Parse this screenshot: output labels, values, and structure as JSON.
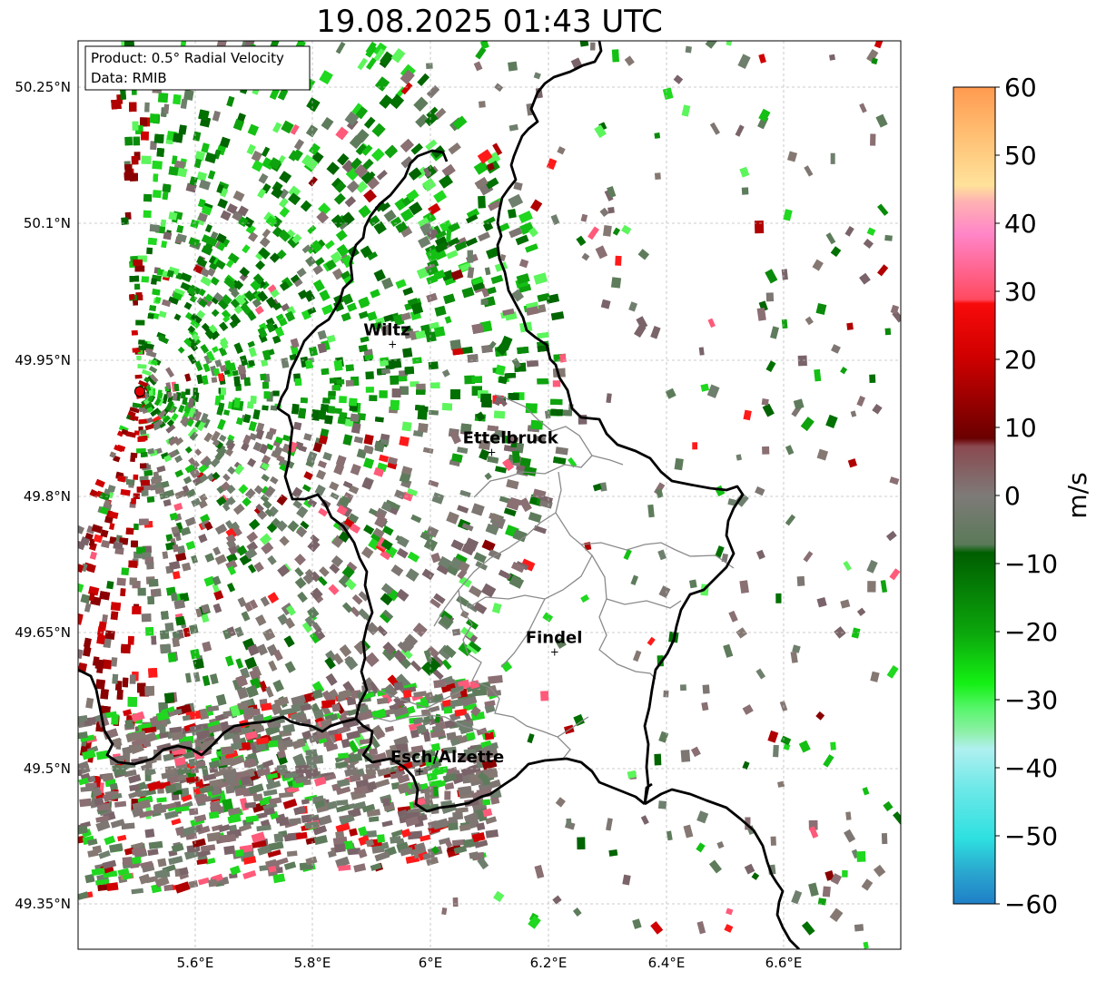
{
  "title": "19.08.2025 01:43 UTC",
  "info_box": {
    "line1": "Product: 0.5° Radial Velocity",
    "line2": "Data: RMIB"
  },
  "map": {
    "lon_range": [
      5.4,
      6.8
    ],
    "lat_range": [
      49.3,
      50.3
    ],
    "x_ticks": [
      "5.6°E",
      "5.8°E",
      "6°E",
      "6.2°E",
      "6.4°E",
      "6.6°E"
    ],
    "y_ticks": [
      "50.25°N",
      "50.1°N",
      "49.95°N",
      "49.8°N",
      "49.65°N",
      "49.5°N",
      "49.35°N"
    ],
    "radar_site": {
      "lon": 5.505,
      "lat": 49.914
    },
    "cities": [
      {
        "name": "Wiltz",
        "lon": 5.935,
        "lat": 49.966
      },
      {
        "name": "Ettelbruck",
        "lon": 6.104,
        "lat": 49.847
      },
      {
        "name": "Findel",
        "lon": 6.211,
        "lat": 49.627
      },
      {
        "name": "Esch/Alzette",
        "lon": 5.981,
        "lat": 49.496
      }
    ]
  },
  "colorbar": {
    "label": "m/s",
    "vmin": -60,
    "vmax": 60,
    "ticks": [
      "60",
      "50",
      "40",
      "30",
      "20",
      "10",
      "0",
      "−10",
      "−20",
      "−30",
      "−40",
      "−50",
      "−60"
    ]
  },
  "colors": {
    "inbound_strong": "#0a8a0a",
    "inbound_light": "#5cf55c",
    "neutral": "#7d7672",
    "outbound": "#b00000",
    "outbound_light": "#ff5a7a"
  }
}
